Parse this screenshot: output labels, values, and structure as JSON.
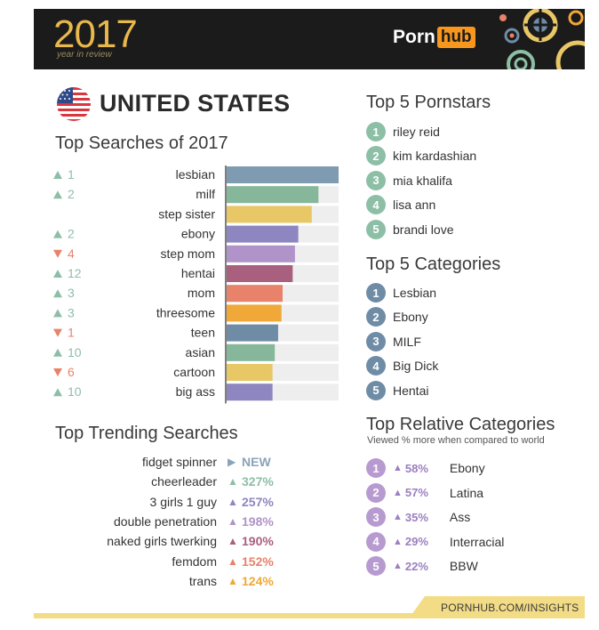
{
  "header": {
    "year": "2017",
    "subtitle": "year in review",
    "logo_left": "Porn",
    "logo_right": "hub",
    "bg_color": "#1b1b1b",
    "year_color": "#e8b84a",
    "logo_accent": "#f7971d"
  },
  "country": "UNITED STATES",
  "top_searches": {
    "title": "Top Searches of 2017"
  },
  "top_trending": {
    "title": "Top Trending Searches",
    "items": [
      {
        "term": "fidget spinner",
        "arrow": "right",
        "value": "NEW",
        "color": "#8aa3b8"
      },
      {
        "term": "cheerleader",
        "arrow": "up",
        "value": "327%",
        "color": "#8dbfa6"
      },
      {
        "term": "3 girls 1 guy",
        "arrow": "up",
        "value": "257%",
        "color": "#8e86c0"
      },
      {
        "term": "double penetration",
        "arrow": "up",
        "value": "198%",
        "color": "#b093c9"
      },
      {
        "term": "naked girls twerking",
        "arrow": "up",
        "value": "190%",
        "color": "#a8607e"
      },
      {
        "term": "femdom",
        "arrow": "up",
        "value": "152%",
        "color": "#e8826a"
      },
      {
        "term": "trans",
        "arrow": "up",
        "value": "124%",
        "color": "#f0a838"
      }
    ]
  },
  "top_pornstars": {
    "title": "Top 5 Pornstars",
    "color": "#8dbfa6",
    "items": [
      "riley reid",
      "kim kardashian",
      "mia khalifa",
      "lisa ann",
      "brandi love"
    ],
    "numbers": [
      "1",
      "2",
      "3",
      "4",
      "5"
    ]
  },
  "top_categories": {
    "title": "Top 5 Categories",
    "color": "#6f8ca6",
    "items": [
      "Lesbian",
      "Ebony",
      "MILF",
      "Big Dick",
      "Hentai"
    ],
    "numbers": [
      "1",
      "2",
      "3",
      "4",
      "5"
    ]
  },
  "relative_categories": {
    "title": "Top Relative Categories",
    "subtitle": "Viewed % more when compared to world",
    "color": "#b79bd0",
    "items": [
      {
        "num": "1",
        "pct": "58%",
        "label": "Ebony"
      },
      {
        "num": "2",
        "pct": "57%",
        "label": "Latina"
      },
      {
        "num": "3",
        "pct": "35%",
        "label": "Ass"
      },
      {
        "num": "4",
        "pct": "29%",
        "label": "Interracial"
      },
      {
        "num": "5",
        "pct": "22%",
        "label": "BBW"
      }
    ]
  },
  "footer": {
    "url": "PORNHUB.COM/INSIGHTS"
  },
  "chart_data": {
    "type": "bar",
    "orientation": "horizontal",
    "title": "Top Searches of 2017",
    "categories": [
      "lesbian",
      "milf",
      "step sister",
      "ebony",
      "step mom",
      "hentai",
      "mom",
      "threesome",
      "teen",
      "asian",
      "cartoon",
      "big ass"
    ],
    "values": [
      100,
      82,
      76,
      64,
      61,
      59,
      50,
      49,
      46,
      43,
      41,
      41
    ],
    "xlim": [
      0,
      100
    ],
    "rank_change": [
      {
        "dir": "up",
        "value": "1"
      },
      {
        "dir": "up",
        "value": "2"
      },
      {
        "dir": "none",
        "value": ""
      },
      {
        "dir": "up",
        "value": "2"
      },
      {
        "dir": "down",
        "value": "4"
      },
      {
        "dir": "up",
        "value": "12"
      },
      {
        "dir": "up",
        "value": "3"
      },
      {
        "dir": "up",
        "value": "3"
      },
      {
        "dir": "down",
        "value": "1"
      },
      {
        "dir": "up",
        "value": "10"
      },
      {
        "dir": "down",
        "value": "6"
      },
      {
        "dir": "up",
        "value": "10"
      }
    ],
    "bar_colors": [
      "#7f9bb2",
      "#86b79b",
      "#e8c766",
      "#8e86c0",
      "#b093c9",
      "#a8607e",
      "#e8826a",
      "#f0a838",
      "#6f8ca6",
      "#86b79b",
      "#e8c766",
      "#8e86c0"
    ],
    "up_color": "#8dbfa6",
    "down_color": "#e8826a",
    "track_color": "#eeeeee"
  }
}
